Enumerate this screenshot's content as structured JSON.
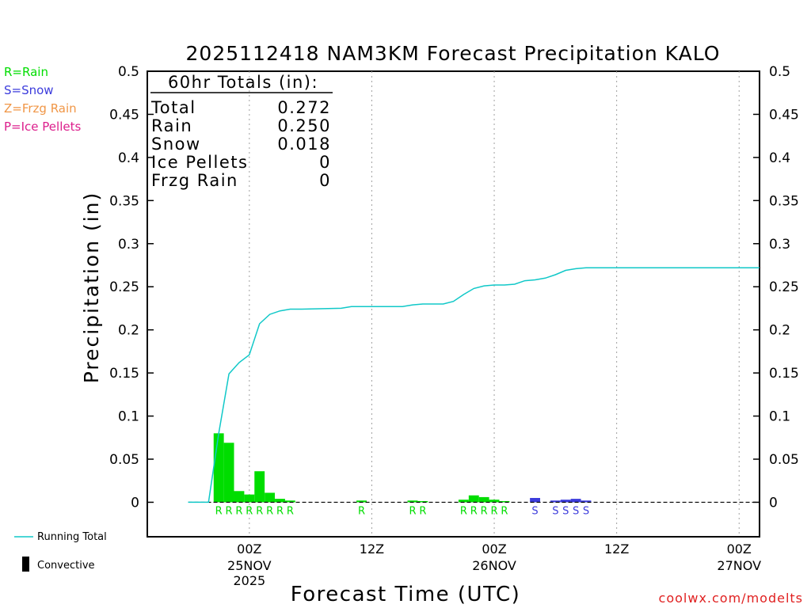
{
  "chart_data": {
    "type": "bar",
    "title": "2025112418 NAM3KM Forecast Precipitation KALO",
    "ylabel": "Precipitation (in)",
    "xlabel": "Forecast Time (UTC)",
    "ylim": [
      -0.04,
      0.5
    ],
    "xlim": [
      -4,
      56
    ],
    "yticks": [
      0,
      0.05,
      0.1,
      0.15,
      0.2,
      0.25,
      0.3,
      0.35,
      0.4,
      0.45,
      0.5
    ],
    "ytick_labels": [
      "0",
      "0.05",
      "0.1",
      "0.15",
      "0.2",
      "0.25",
      "0.3",
      "0.35",
      "0.4",
      "0.45",
      "0.5"
    ],
    "xticks": [
      {
        "hour": 6,
        "label": "00Z",
        "date": "25NOV",
        "year": "2025"
      },
      {
        "hour": 18,
        "label": "12Z",
        "date": "",
        "year": ""
      },
      {
        "hour": 30,
        "label": "00Z",
        "date": "26NOV",
        "year": ""
      },
      {
        "hour": 42,
        "label": "12Z",
        "date": "",
        "year": ""
      },
      {
        "hour": 54,
        "label": "00Z",
        "date": "27NOV",
        "year": ""
      }
    ],
    "hourly_series": {
      "name": "Hourly Precipitation",
      "bars": [
        {
          "hour": 3,
          "value": 0.08,
          "ptype": "R"
        },
        {
          "hour": 4,
          "value": 0.069,
          "ptype": "R"
        },
        {
          "hour": 5,
          "value": 0.013,
          "ptype": "R"
        },
        {
          "hour": 6,
          "value": 0.009,
          "ptype": "R"
        },
        {
          "hour": 7,
          "value": 0.036,
          "ptype": "R"
        },
        {
          "hour": 8,
          "value": 0.011,
          "ptype": "R"
        },
        {
          "hour": 9,
          "value": 0.004,
          "ptype": "R"
        },
        {
          "hour": 10,
          "value": 0.002,
          "ptype": "R"
        },
        {
          "hour": 17,
          "value": 0.002,
          "ptype": "R"
        },
        {
          "hour": 22,
          "value": 0.002,
          "ptype": "R"
        },
        {
          "hour": 23,
          "value": 0.001,
          "ptype": "R"
        },
        {
          "hour": 27,
          "value": 0.003,
          "ptype": "R"
        },
        {
          "hour": 28,
          "value": 0.008,
          "ptype": "R"
        },
        {
          "hour": 29,
          "value": 0.006,
          "ptype": "R"
        },
        {
          "hour": 30,
          "value": 0.003,
          "ptype": "R"
        },
        {
          "hour": 31,
          "value": 0.001,
          "ptype": "R"
        },
        {
          "hour": 34,
          "value": 0.005,
          "ptype": "S"
        },
        {
          "hour": 36,
          "value": 0.002,
          "ptype": "S"
        },
        {
          "hour": 37,
          "value": 0.003,
          "ptype": "S"
        },
        {
          "hour": 38,
          "value": 0.004,
          "ptype": "S"
        },
        {
          "hour": 39,
          "value": 0.002,
          "ptype": "S"
        }
      ]
    },
    "running_total_series": {
      "name": "Running Total",
      "points": [
        [
          0,
          0
        ],
        [
          2,
          0
        ],
        [
          3,
          0.08
        ],
        [
          4,
          0.149
        ],
        [
          5,
          0.162
        ],
        [
          6,
          0.171
        ],
        [
          7,
          0.207
        ],
        [
          8,
          0.218
        ],
        [
          9,
          0.222
        ],
        [
          10,
          0.224
        ],
        [
          11,
          0.224
        ],
        [
          15,
          0.225
        ],
        [
          16,
          0.227
        ],
        [
          21,
          0.227
        ],
        [
          22,
          0.229
        ],
        [
          23,
          0.23
        ],
        [
          25,
          0.23
        ],
        [
          26,
          0.233
        ],
        [
          27,
          0.241
        ],
        [
          28,
          0.248
        ],
        [
          29,
          0.251
        ],
        [
          30,
          0.252
        ],
        [
          31,
          0.252
        ],
        [
          32,
          0.253
        ],
        [
          33,
          0.257
        ],
        [
          34,
          0.258
        ],
        [
          35,
          0.26
        ],
        [
          36,
          0.264
        ],
        [
          37,
          0.269
        ],
        [
          38,
          0.271
        ],
        [
          39,
          0.272
        ],
        [
          56,
          0.272
        ]
      ]
    },
    "totals_box": {
      "header": "60hr Totals (in):",
      "rows": [
        {
          "label": "Total",
          "value": "0.272"
        },
        {
          "label": "Rain",
          "value": "0.250"
        },
        {
          "label": "Snow",
          "value": "0.018"
        },
        {
          "label": "Ice Pellets",
          "value": "0"
        },
        {
          "label": "Frzg Rain",
          "value": "0"
        }
      ]
    },
    "ptype_legend": [
      {
        "code": "R",
        "text": "R=Rain",
        "color": "#00dd00"
      },
      {
        "code": "S",
        "text": "S=Snow",
        "color": "#3c3cdc"
      },
      {
        "code": "Z",
        "text": "Z=Frzg Rain",
        "color": "#f09646"
      },
      {
        "code": "P",
        "text": "P=Ice Pellets",
        "color": "#dc1e8c"
      }
    ],
    "bottom_legend": {
      "running_total": "Running Total",
      "convective": "Convective"
    },
    "colors": {
      "running_total": "#10c8c8",
      "grid": "#a0a0a0",
      "axis": "#000000"
    }
  },
  "credit": "coolwx.com/modelts"
}
